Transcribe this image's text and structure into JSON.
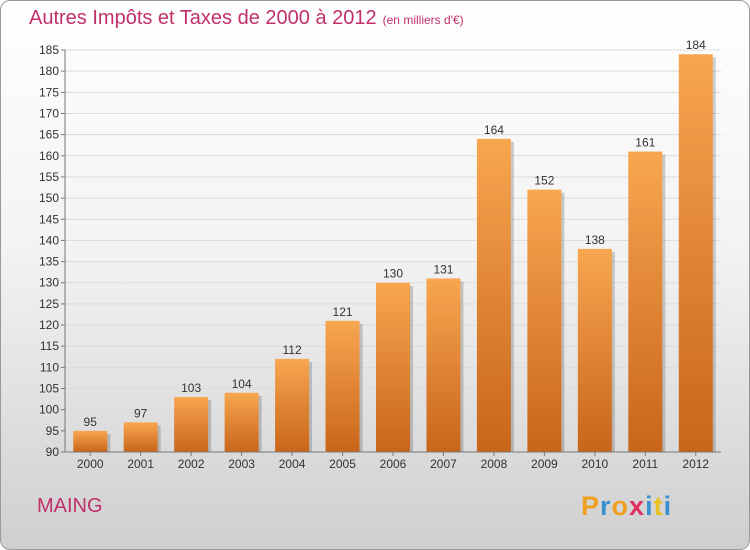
{
  "title": "Autres Impôts et Taxes de 2000 à 2012",
  "unit": "(en milliers d'€)",
  "commune": "MAING",
  "logo": {
    "letters": [
      "P",
      "r",
      "o",
      "x",
      "i",
      "t",
      "i"
    ],
    "colors": [
      "#f0a020",
      "#3a8fd0",
      "#f0a020",
      "#e03060",
      "#3a8fd0",
      "#e8c020",
      "#3a8fd0"
    ]
  },
  "colors": {
    "bar_light": "#f8a650",
    "bar_dark": "#c8651a",
    "title": "#c0306a"
  },
  "chart_data": {
    "type": "bar",
    "categories": [
      "2000",
      "2001",
      "2002",
      "2003",
      "2004",
      "2005",
      "2006",
      "2007",
      "2008",
      "2009",
      "2010",
      "2011",
      "2012"
    ],
    "values": [
      95,
      97,
      103,
      104,
      112,
      121,
      130,
      131,
      164,
      152,
      138,
      161,
      184
    ],
    "ylim": [
      90,
      185
    ],
    "yticks": [
      90,
      95,
      100,
      105,
      110,
      115,
      120,
      125,
      130,
      135,
      140,
      145,
      150,
      155,
      160,
      165,
      170,
      175,
      180,
      185
    ],
    "grid": true
  }
}
